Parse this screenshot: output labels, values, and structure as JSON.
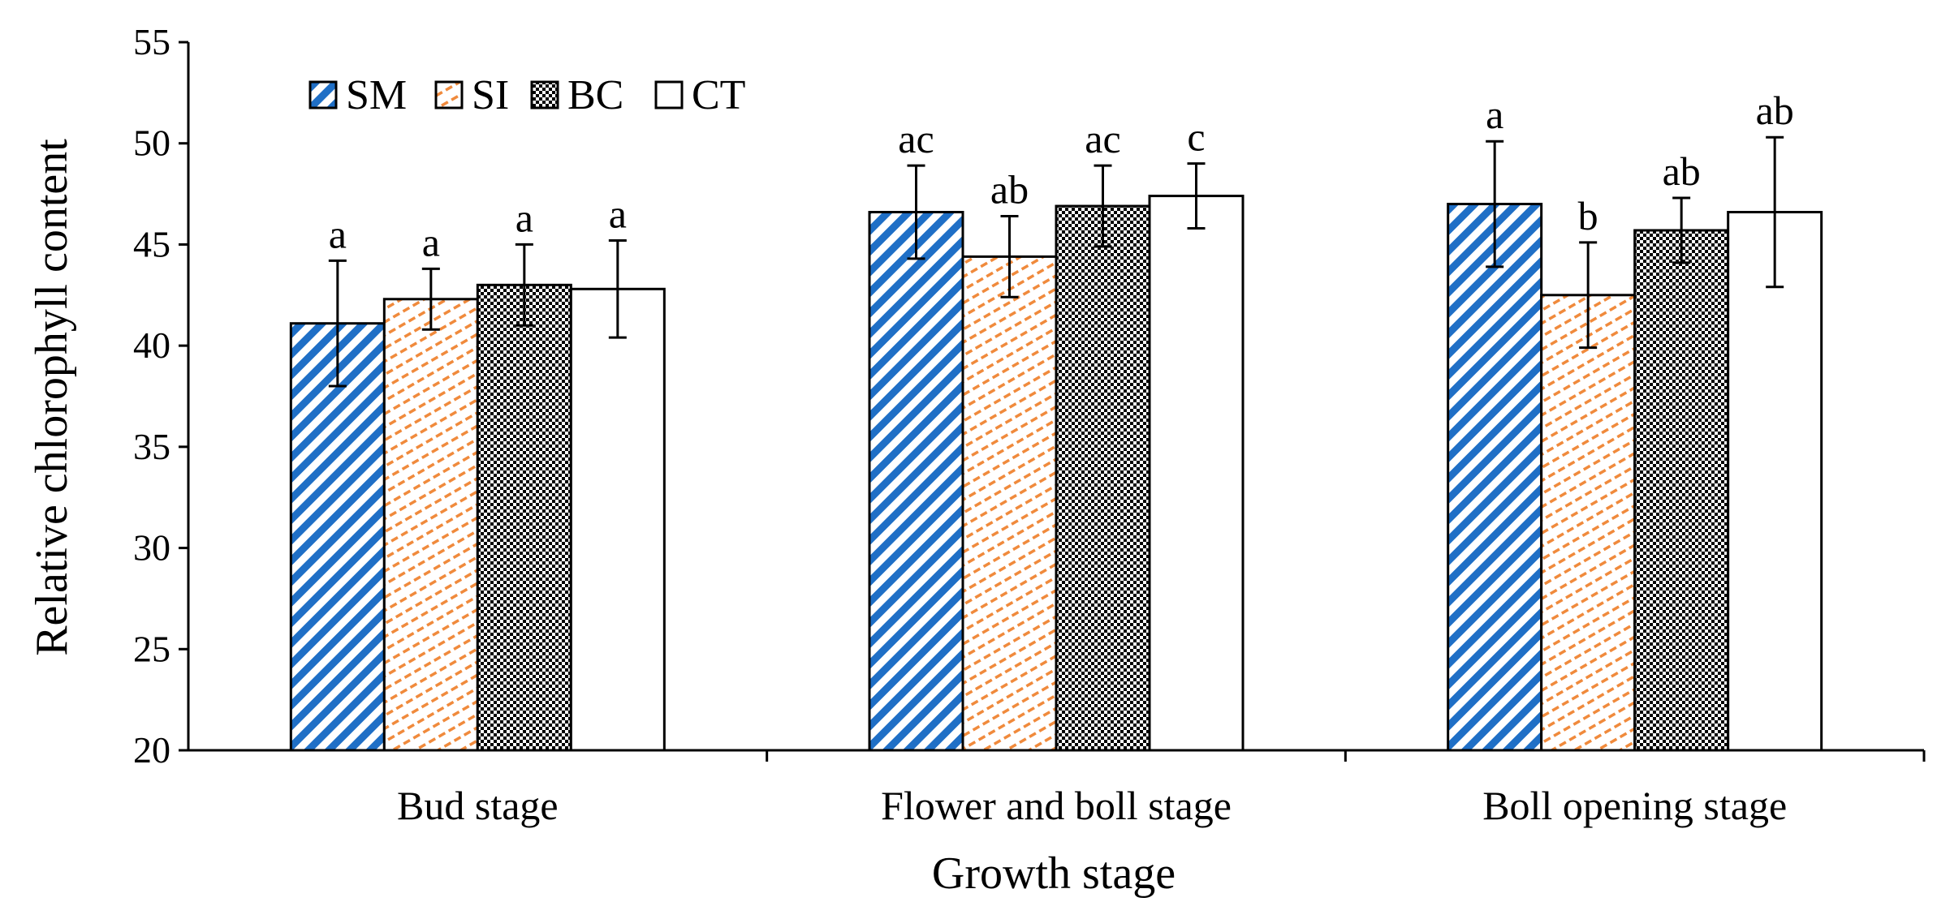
{
  "chart_data": {
    "type": "bar",
    "title": "",
    "xlabel": "Growth stage",
    "ylabel": "Relative chlorophyll content",
    "ylim": [
      20,
      55
    ],
    "yticks": [
      20,
      25,
      30,
      35,
      40,
      45,
      50,
      55
    ],
    "grid": false,
    "legend_position": "top-left",
    "categories": [
      "Bud stage",
      "Flower and boll stage",
      "Boll opening stage"
    ],
    "series": [
      {
        "name": "SM",
        "pattern": "diagonal-stripes",
        "color": "#1f6fc6",
        "values": [
          41.1,
          46.6,
          47.0
        ],
        "errors": [
          3.1,
          2.3,
          3.1
        ],
        "letters": [
          "a",
          "ac",
          "a"
        ]
      },
      {
        "name": "SI",
        "pattern": "dashes",
        "color": "#f08a3c",
        "values": [
          42.3,
          44.4,
          42.5
        ],
        "errors": [
          1.5,
          2.0,
          2.6
        ],
        "letters": [
          "a",
          "ab",
          "b"
        ]
      },
      {
        "name": "BC",
        "pattern": "dots",
        "color": "#000000",
        "values": [
          43.0,
          46.9,
          45.7
        ],
        "errors": [
          2.0,
          2.0,
          1.6
        ],
        "letters": [
          "a",
          "ac",
          "ab"
        ]
      },
      {
        "name": "CT",
        "pattern": "solid-white",
        "color": "#ffffff",
        "values": [
          42.8,
          47.4,
          46.6
        ],
        "errors": [
          2.4,
          1.6,
          3.7
        ],
        "letters": [
          "a",
          "c",
          "ab"
        ]
      }
    ]
  }
}
